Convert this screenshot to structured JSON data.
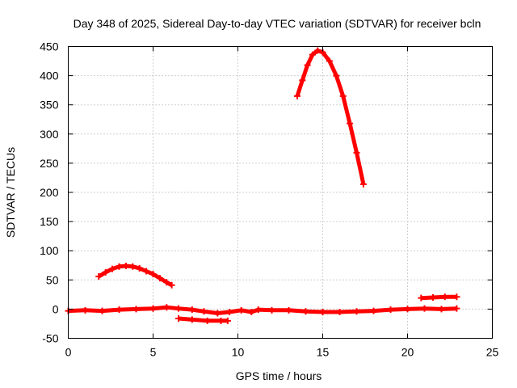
{
  "chart_data": {
    "type": "line",
    "title": "Day 348 of 2025, Sidereal Day-to-day VTEC variation (SDTVAR) for receiver bcln",
    "xlabel": "GPS time / hours",
    "ylabel": "SDTVAR / TECUs",
    "xlim": [
      0,
      25
    ],
    "ylim": [
      -50,
      450
    ],
    "xticks": [
      "0",
      "5",
      "10",
      "15",
      "20",
      "25"
    ],
    "yticks": [
      "-50",
      "0",
      "50",
      "100",
      "150",
      "200",
      "250",
      "300",
      "350",
      "400",
      "450"
    ],
    "grid": true,
    "color": "#ff0000",
    "series": [
      {
        "points": [
          [
            13.5,
            365
          ],
          [
            13.8,
            392
          ],
          [
            14.1,
            418
          ],
          [
            14.4,
            436
          ],
          [
            14.7,
            443
          ],
          [
            15.0,
            440
          ],
          [
            15.4,
            425
          ],
          [
            15.8,
            400
          ],
          [
            16.2,
            365
          ],
          [
            16.6,
            318
          ],
          [
            17.0,
            268
          ],
          [
            17.4,
            214
          ]
        ]
      },
      {
        "points": [
          [
            1.8,
            56
          ],
          [
            2.2,
            63
          ],
          [
            2.6,
            69
          ],
          [
            3.0,
            73
          ],
          [
            3.4,
            74
          ],
          [
            3.8,
            73
          ],
          [
            4.2,
            70
          ],
          [
            4.6,
            65
          ],
          [
            5.0,
            60
          ],
          [
            5.4,
            53
          ],
          [
            5.8,
            46
          ],
          [
            6.1,
            41
          ]
        ]
      },
      {
        "points": [
          [
            0.0,
            -3
          ],
          [
            1.0,
            -2
          ],
          [
            2.0,
            -3
          ],
          [
            3.0,
            -1
          ],
          [
            4.0,
            0
          ],
          [
            5.0,
            1
          ],
          [
            5.8,
            3
          ],
          [
            6.5,
            1
          ],
          [
            7.3,
            -1
          ],
          [
            8.0,
            -4
          ],
          [
            8.8,
            -7
          ],
          [
            9.5,
            -5
          ],
          [
            10.2,
            -2
          ],
          [
            10.8,
            -5
          ],
          [
            11.2,
            -1
          ],
          [
            12.0,
            -2
          ],
          [
            13.0,
            -2
          ],
          [
            14.0,
            -4
          ],
          [
            15.0,
            -5
          ],
          [
            16.0,
            -5
          ],
          [
            17.0,
            -4
          ],
          [
            18.0,
            -3
          ],
          [
            19.0,
            -1
          ],
          [
            20.0,
            0
          ],
          [
            21.0,
            1
          ],
          [
            22.0,
            0
          ],
          [
            22.9,
            1
          ]
        ]
      },
      {
        "points": [
          [
            6.5,
            -16
          ],
          [
            7.3,
            -18
          ],
          [
            8.2,
            -20
          ],
          [
            9.0,
            -20
          ],
          [
            9.4,
            -20
          ]
        ]
      },
      {
        "points": [
          [
            20.8,
            19
          ],
          [
            21.5,
            20
          ],
          [
            22.2,
            21
          ],
          [
            22.9,
            21
          ]
        ]
      }
    ]
  }
}
